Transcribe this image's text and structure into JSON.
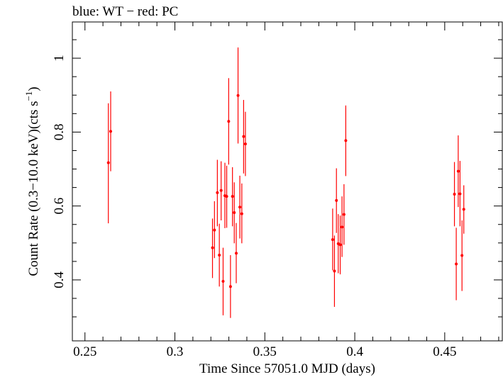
{
  "chart_data": {
    "type": "scatter",
    "title": "blue: WT − red: PC",
    "xlabel": "Time Since 57051.0 MJD (days)",
    "ylabel_main": "Count Rate (0.3−10.0 keV)(cts s",
    "ylabel_sup": "−1",
    "ylabel_end": ")",
    "xlim": [
      0.243,
      0.482
    ],
    "ylim": [
      0.235,
      1.098
    ],
    "x_ticks": [
      0.25,
      0.3,
      0.35,
      0.4,
      0.45
    ],
    "x_tick_labels": [
      "0.25",
      "0.3",
      "0.35",
      "0.4",
      "0.45"
    ],
    "y_ticks": [
      0.4,
      0.6,
      0.8,
      1.0
    ],
    "y_tick_labels": [
      "0.4",
      "0.6",
      "0.8",
      "1"
    ],
    "grid": false,
    "series": [
      {
        "name": "PC",
        "color": "#ff0000",
        "points": [
          {
            "x": 0.263,
            "y": 0.717,
            "lo": 0.553,
            "hi": 0.878
          },
          {
            "x": 0.2643,
            "y": 0.802,
            "lo": 0.694,
            "hi": 0.91
          },
          {
            "x": 0.3209,
            "y": 0.487,
            "lo": 0.405,
            "hi": 0.566
          },
          {
            "x": 0.322,
            "y": 0.535,
            "lo": 0.459,
            "hi": 0.613
          },
          {
            "x": 0.3236,
            "y": 0.636,
            "lo": 0.545,
            "hi": 0.725
          },
          {
            "x": 0.3247,
            "y": 0.467,
            "lo": 0.382,
            "hi": 0.552
          },
          {
            "x": 0.3257,
            "y": 0.642,
            "lo": 0.561,
            "hi": 0.721
          },
          {
            "x": 0.3268,
            "y": 0.396,
            "lo": 0.304,
            "hi": 0.487
          },
          {
            "x": 0.3278,
            "y": 0.628,
            "lo": 0.54,
            "hi": 0.717
          },
          {
            "x": 0.3288,
            "y": 0.626,
            "lo": 0.541,
            "hi": 0.709
          },
          {
            "x": 0.3299,
            "y": 0.829,
            "lo": 0.712,
            "hi": 0.946
          },
          {
            "x": 0.3309,
            "y": 0.382,
            "lo": 0.297,
            "hi": 0.467
          },
          {
            "x": 0.332,
            "y": 0.626,
            "lo": 0.545,
            "hi": 0.705
          },
          {
            "x": 0.333,
            "y": 0.582,
            "lo": 0.499,
            "hi": 0.664
          },
          {
            "x": 0.3341,
            "y": 0.472,
            "lo": 0.391,
            "hi": 0.554
          },
          {
            "x": 0.3351,
            "y": 0.899,
            "lo": 0.769,
            "hi": 1.029
          },
          {
            "x": 0.3361,
            "y": 0.597,
            "lo": 0.512,
            "hi": 0.682
          },
          {
            "x": 0.3372,
            "y": 0.579,
            "lo": 0.499,
            "hi": 0.661
          },
          {
            "x": 0.3382,
            "y": 0.788,
            "lo": 0.688,
            "hi": 0.887
          },
          {
            "x": 0.3392,
            "y": 0.768,
            "lo": 0.681,
            "hi": 0.855
          },
          {
            "x": 0.3877,
            "y": 0.509,
            "lo": 0.426,
            "hi": 0.593
          },
          {
            "x": 0.3887,
            "y": 0.424,
            "lo": 0.327,
            "hi": 0.52
          },
          {
            "x": 0.3898,
            "y": 0.615,
            "lo": 0.527,
            "hi": 0.702
          },
          {
            "x": 0.3908,
            "y": 0.498,
            "lo": 0.418,
            "hi": 0.578
          },
          {
            "x": 0.3919,
            "y": 0.495,
            "lo": 0.415,
            "hi": 0.574
          },
          {
            "x": 0.3929,
            "y": 0.543,
            "lo": 0.462,
            "hi": 0.626
          },
          {
            "x": 0.394,
            "y": 0.577,
            "lo": 0.495,
            "hi": 0.659
          },
          {
            "x": 0.395,
            "y": 0.777,
            "lo": 0.681,
            "hi": 0.872
          },
          {
            "x": 0.4554,
            "y": 0.632,
            "lo": 0.545,
            "hi": 0.719
          },
          {
            "x": 0.4564,
            "y": 0.443,
            "lo": 0.345,
            "hi": 0.541
          },
          {
            "x": 0.4575,
            "y": 0.694,
            "lo": 0.597,
            "hi": 0.791
          },
          {
            "x": 0.4585,
            "y": 0.633,
            "lo": 0.545,
            "hi": 0.722
          },
          {
            "x": 0.4596,
            "y": 0.466,
            "lo": 0.37,
            "hi": 0.561
          },
          {
            "x": 0.4606,
            "y": 0.591,
            "lo": 0.525,
            "hi": 0.656
          }
        ]
      }
    ]
  }
}
